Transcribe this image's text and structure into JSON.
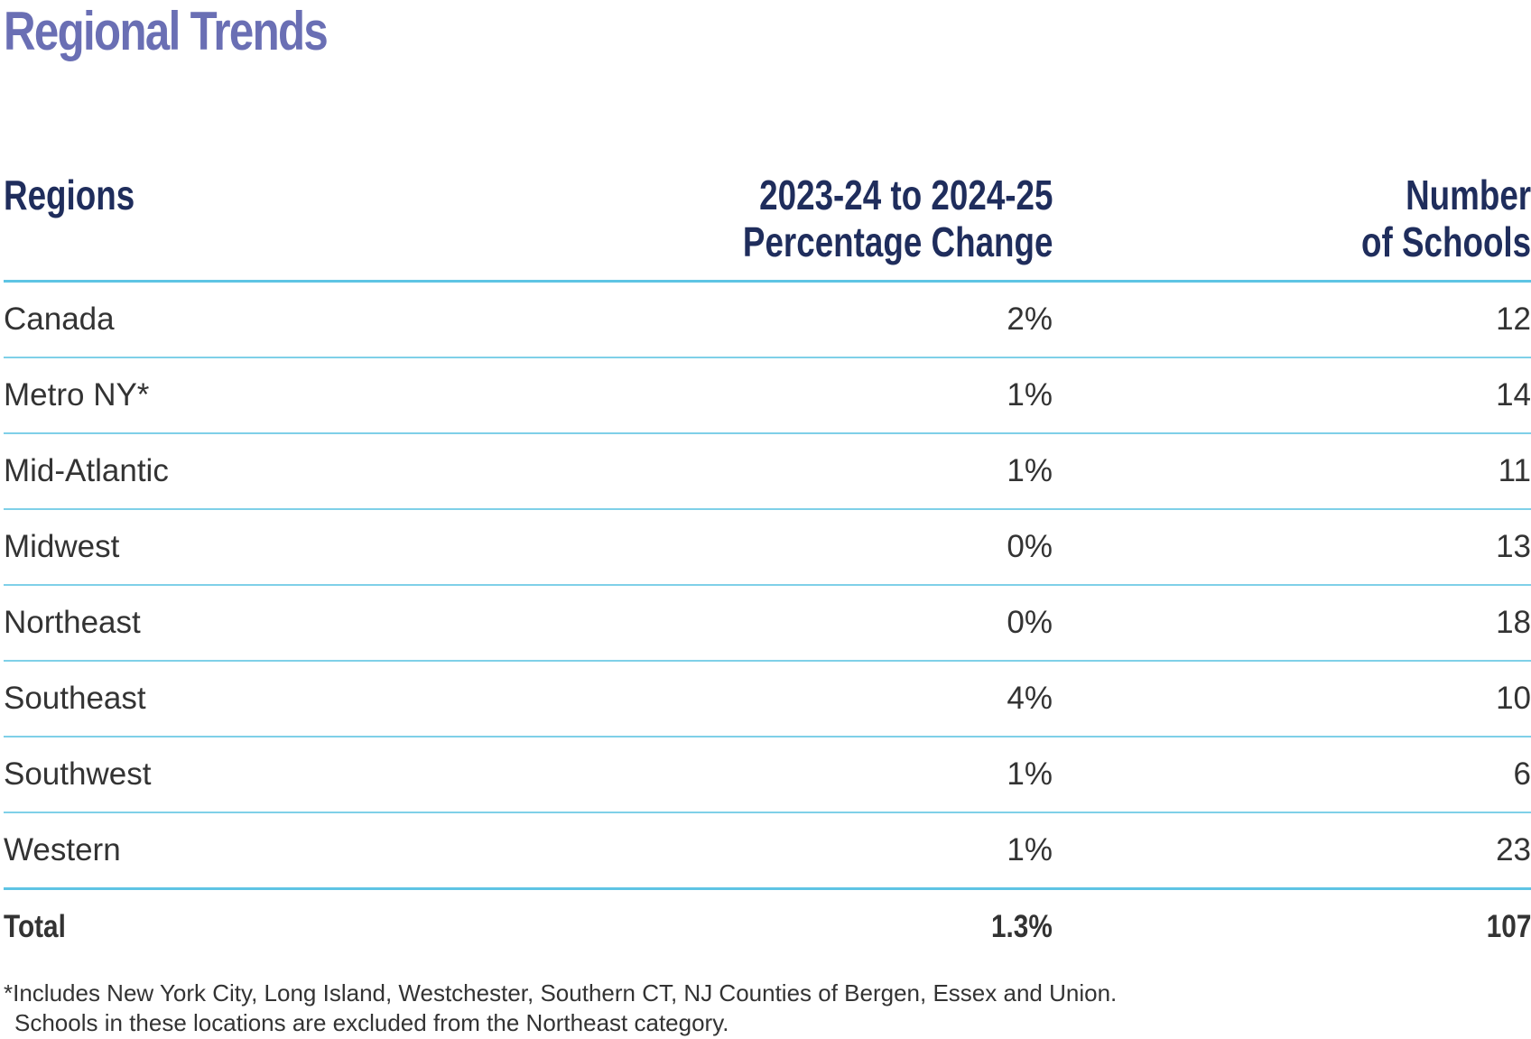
{
  "title": "Regional Trends",
  "colors": {
    "title": "#6a6fb4",
    "header": "#1f2d5c",
    "body_text": "#333333",
    "rule": "#5ec4e4"
  },
  "table": {
    "headers": {
      "region": "Regions",
      "change_line1": "2023-24 to 2024-25",
      "change_line2": "Percentage Change",
      "schools_line1": "Number",
      "schools_line2": "of Schools"
    },
    "rows": [
      {
        "region": "Canada",
        "change": "2%",
        "schools": "12"
      },
      {
        "region": "Metro NY*",
        "change": "1%",
        "schools": "14"
      },
      {
        "region": "Mid-Atlantic",
        "change": "1%",
        "schools": "11"
      },
      {
        "region": "Midwest",
        "change": "0%",
        "schools": "13"
      },
      {
        "region": "Northeast",
        "change": "0%",
        "schools": "18"
      },
      {
        "region": "Southeast",
        "change": "4%",
        "schools": "10"
      },
      {
        "region": "Southwest",
        "change": "1%",
        "schools": "6"
      },
      {
        "region": "Western",
        "change": "1%",
        "schools": "23"
      }
    ],
    "total": {
      "label": "Total",
      "change": "1.3%",
      "schools": "107"
    }
  },
  "footnote": {
    "line1": "*Includes New York City, Long Island, Westchester, Southern CT, NJ Counties of Bergen, Essex and Union.",
    "line2": "Schools in these locations are excluded from the Northeast category."
  }
}
